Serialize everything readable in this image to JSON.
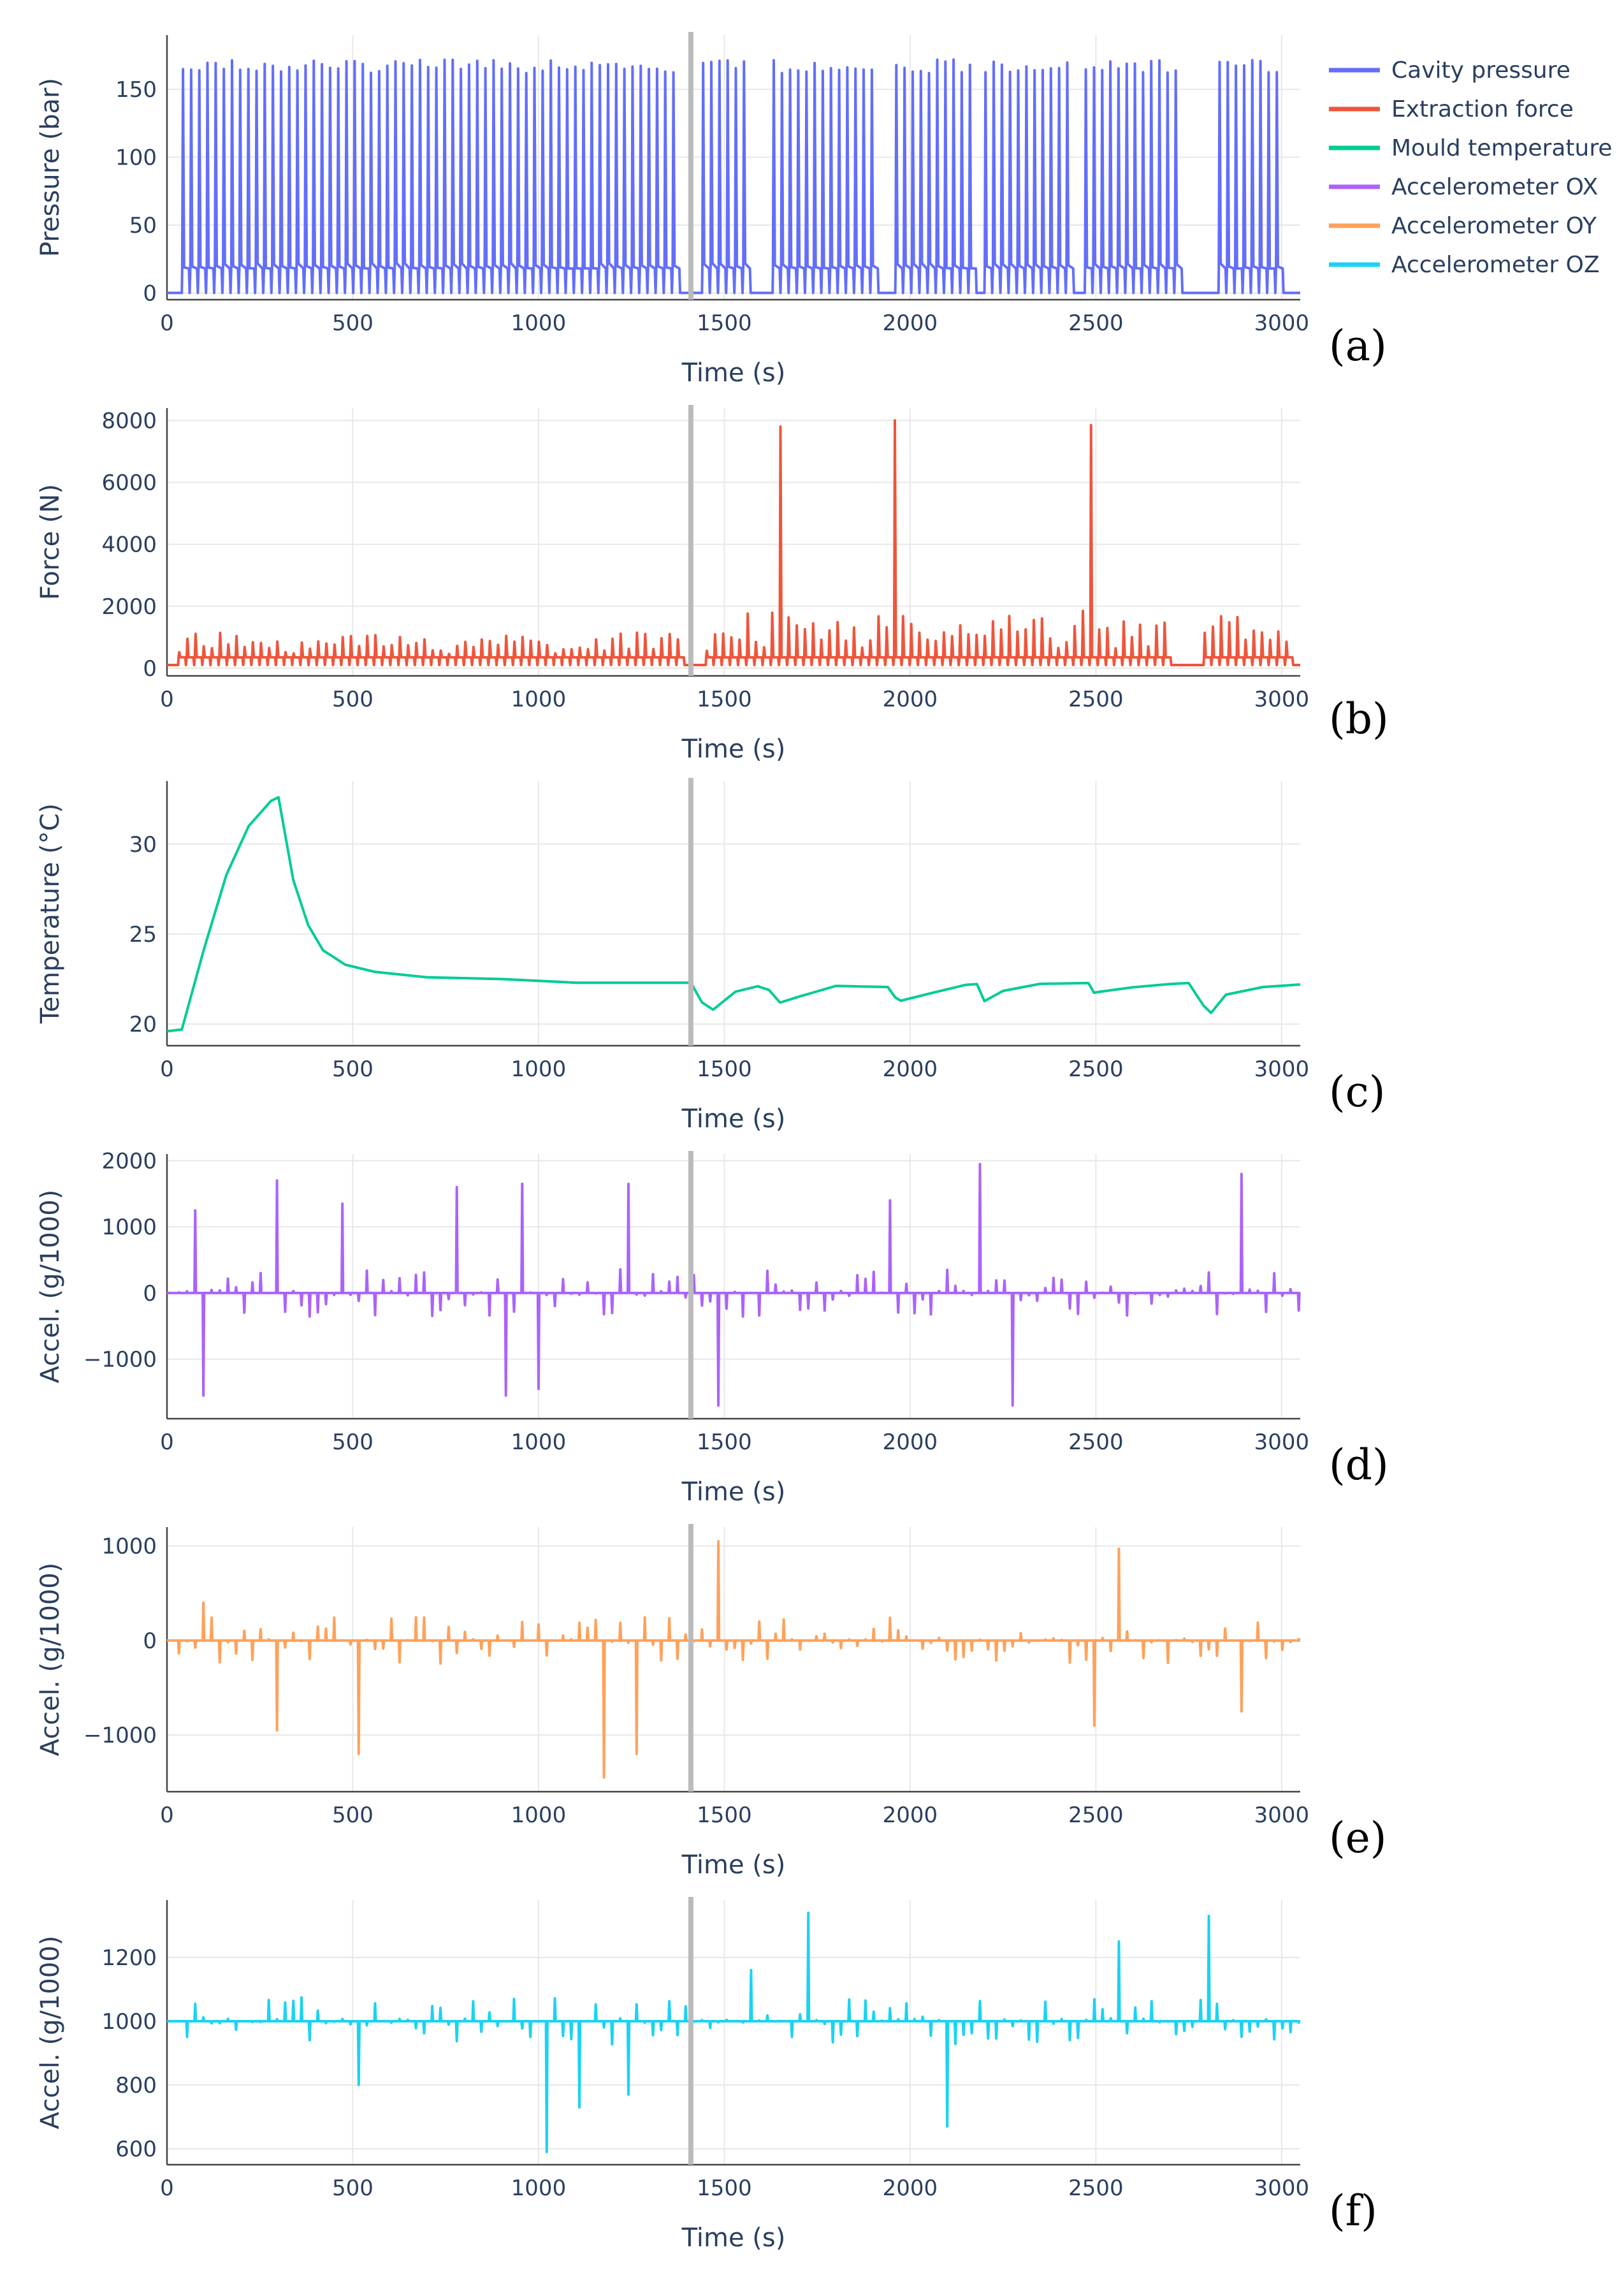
{
  "legend": [
    {
      "label": "Cavity pressure",
      "color": "#636efa"
    },
    {
      "label": "Extraction force",
      "color": "#ef553b"
    },
    {
      "label": "Mould temperature",
      "color": "#00cc96"
    },
    {
      "label": "Accelerometer OX",
      "color": "#ab63fa"
    },
    {
      "label": "Accelerometer OY",
      "color": "#ffa15a"
    },
    {
      "label": "Accelerometer OZ",
      "color": "#19d3f3"
    }
  ],
  "vertical_marker_x": 1410,
  "chart_data": [
    {
      "type": "line",
      "panel": "(a)",
      "xlabel": "Time (s)",
      "ylabel": "Pressure (bar)",
      "xlim": [
        0,
        3050
      ],
      "xticks": [
        0,
        500,
        1000,
        1500,
        2000,
        2500,
        3000
      ],
      "ylim": [
        -5,
        190
      ],
      "yticks": [
        0,
        50,
        100,
        150
      ],
      "series": [
        {
          "name": "Cavity pressure",
          "color": "#636efa",
          "pattern": "cycles",
          "base": 0,
          "plateau": 20,
          "peak": 172,
          "active_segments": [
            [
              40,
              1400
            ],
            [
              1440,
              1590
            ],
            [
              1630,
              1930
            ],
            [
              1960,
              2180
            ],
            [
              2200,
              2450
            ],
            [
              2470,
              2740
            ],
            [
              2830,
              3020
            ]
          ],
          "period": 22
        }
      ]
    },
    {
      "type": "line",
      "panel": "(b)",
      "xlabel": "Time (s)",
      "ylabel": "Force (N)",
      "xlim": [
        0,
        3050
      ],
      "xticks": [
        0,
        500,
        1000,
        1500,
        2000,
        2500,
        3000
      ],
      "ylim": [
        -250,
        8400
      ],
      "yticks": [
        0,
        2000,
        4000,
        6000,
        8000
      ],
      "series": [
        {
          "name": "Extraction force",
          "color": "#ef553b",
          "pattern": "cycles",
          "base": 100,
          "plateau": 350,
          "active_segments": [
            [
              30,
              1400
            ],
            [
              1450,
              2720
            ],
            [
              2790,
              3050
            ]
          ],
          "large_spikes": [
            [
              1650,
              7800
            ],
            [
              1965,
              8000
            ],
            [
              2490,
              7850
            ]
          ]
        }
      ]
    },
    {
      "type": "line",
      "panel": "(c)",
      "xlabel": "Time (s)",
      "ylabel": "Temperature (°C)",
      "xlim": [
        0,
        3050
      ],
      "xticks": [
        0,
        500,
        1000,
        1500,
        2000,
        2500,
        3000
      ],
      "ylim": [
        18.8,
        33.5
      ],
      "yticks": [
        20,
        25,
        30
      ],
      "series": [
        {
          "name": "Mould temperature",
          "color": "#00cc96",
          "x": [
            0,
            40,
            100,
            160,
            220,
            280,
            300,
            340,
            380,
            420,
            480,
            560,
            700,
            900,
            1100,
            1300,
            1410,
            1440,
            1470,
            1530,
            1590,
            1620,
            1650,
            1700,
            1800,
            1940,
            1960,
            1975,
            2050,
            2150,
            2180,
            2200,
            2250,
            2350,
            2480,
            2495,
            2510,
            2600,
            2700,
            2750,
            2790,
            2810,
            2850,
            2950,
            3050
          ],
          "y": [
            19.6,
            19.7,
            24.2,
            28.3,
            31.0,
            32.4,
            32.6,
            28.0,
            25.5,
            24.1,
            23.3,
            22.9,
            22.6,
            22.5,
            22.3,
            22.3,
            22.3,
            21.2,
            20.8,
            21.8,
            22.1,
            21.9,
            21.2,
            21.5,
            22.1,
            22.1,
            21.5,
            21.3,
            21.7,
            22.2,
            22.2,
            21.3,
            21.8,
            22.2,
            22.3,
            21.7,
            21.8,
            22.0,
            22.2,
            22.3,
            21.0,
            20.6,
            21.6,
            22.1,
            22.2
          ]
        }
      ]
    },
    {
      "type": "line",
      "panel": "(d)",
      "xlabel": "Time (s)",
      "ylabel": "Accel. (g/1000)",
      "xlim": [
        0,
        3050
      ],
      "xticks": [
        0,
        500,
        1000,
        1500,
        2000,
        2500,
        3000
      ],
      "ylim": [
        -1900,
        2100
      ],
      "yticks": [
        -1000,
        0,
        1000,
        2000
      ],
      "series": [
        {
          "name": "Accelerometer OX",
          "color": "#ab63fa",
          "pattern": "spikes",
          "base": 0,
          "spacing": 22,
          "highlights": [
            [
              65,
              1250
            ],
            [
              90,
              -1550
            ],
            [
              290,
              1700
            ],
            [
              470,
              1350
            ],
            [
              770,
              1600
            ],
            [
              900,
              -1550
            ],
            [
              950,
              1650
            ],
            [
              1000,
              -1450
            ],
            [
              1230,
              1650
            ],
            [
              1480,
              -1700
            ],
            [
              1950,
              1400
            ],
            [
              2180,
              1950
            ],
            [
              2270,
              -1700
            ],
            [
              2900,
              1800
            ]
          ]
        }
      ]
    },
    {
      "type": "line",
      "panel": "(e)",
      "xlabel": "Time (s)",
      "ylabel": "Accel. (g/1000)",
      "xlim": [
        0,
        3050
      ],
      "xticks": [
        0,
        500,
        1000,
        1500,
        2000,
        2500,
        3000
      ],
      "ylim": [
        -1600,
        1200
      ],
      "yticks": [
        -1000,
        0,
        1000
      ],
      "series": [
        {
          "name": "Accelerometer OY",
          "color": "#ffa15a",
          "pattern": "spikes",
          "base": 0,
          "spacing": 22,
          "highlights": [
            [
              90,
              400
            ],
            [
              300,
              -950
            ],
            [
              520,
              -1200
            ],
            [
              1170,
              -1450
            ],
            [
              1270,
              -1200
            ],
            [
              1480,
              1050
            ],
            [
              2490,
              -900
            ],
            [
              2550,
              970
            ],
            [
              2900,
              -750
            ]
          ]
        }
      ]
    },
    {
      "type": "line",
      "panel": "(f)",
      "xlabel": "Time (s)",
      "ylabel": "Accel. (g/1000)",
      "xlim": [
        0,
        3050
      ],
      "xticks": [
        0,
        500,
        1000,
        1500,
        2000,
        2500,
        3000
      ],
      "ylim": [
        550,
        1380
      ],
      "yticks": [
        600,
        800,
        1000,
        1200
      ],
      "series": [
        {
          "name": "Accelerometer OZ",
          "color": "#19d3f3",
          "pattern": "spikes",
          "base": 1000,
          "spacing": 22,
          "highlights": [
            [
              520,
              800
            ],
            [
              1030,
              590
            ],
            [
              1100,
              730
            ],
            [
              1250,
              770
            ],
            [
              1580,
              1160
            ],
            [
              1720,
              1340
            ],
            [
              2100,
              670
            ],
            [
              2570,
              1250
            ],
            [
              2800,
              1330
            ]
          ]
        }
      ]
    }
  ]
}
